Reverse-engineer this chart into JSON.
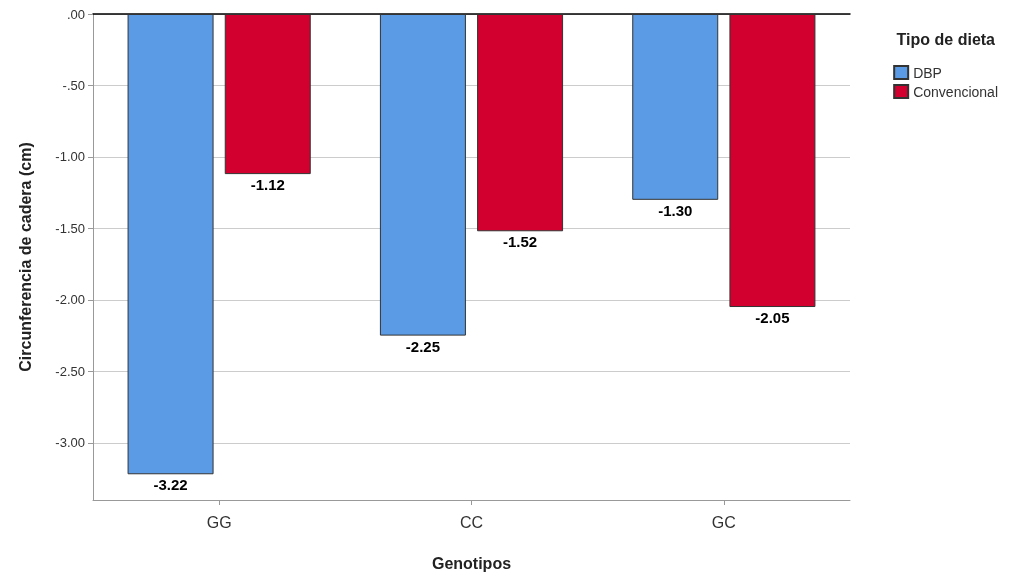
{
  "chart_data": {
    "type": "bar",
    "xlabel": "Genotipos",
    "ylabel": "Circunferencia de cadera (cm)",
    "legend_title": "Tipo de dieta",
    "categories": [
      "GG",
      "CC",
      "GC"
    ],
    "series": [
      {
        "name": "DBP",
        "color": "#5b9be6",
        "values": [
          -3.22,
          -2.25,
          -1.3
        ],
        "value_labels": [
          "-3.22",
          "-2.25",
          "-1.30"
        ]
      },
      {
        "name": "Convencional",
        "color": "#d2002e",
        "values": [
          -1.12,
          -1.52,
          -2.05
        ],
        "value_labels": [
          "-1.12",
          "-1.52",
          "-2.05"
        ]
      }
    ],
    "ylim": [
      -3.4,
      0
    ],
    "yticks": [
      {
        "value": 0,
        "label": ".00"
      },
      {
        "value": -0.5,
        "label": "-.50"
      },
      {
        "value": -1,
        "label": "-1.00"
      },
      {
        "value": -1.5,
        "label": "-1.50"
      },
      {
        "value": -2,
        "label": "-2.00"
      },
      {
        "value": -2.5,
        "label": "-2.50"
      },
      {
        "value": -3,
        "label": "-3.00"
      }
    ],
    "grid": "y",
    "legend": "top right"
  }
}
